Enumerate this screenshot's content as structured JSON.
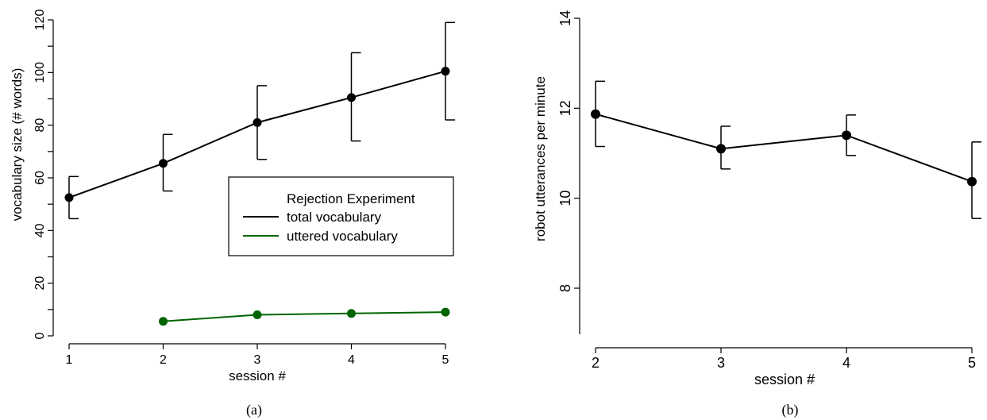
{
  "chart_data": [
    {
      "panel": "(a)",
      "type": "line",
      "xlabel": "session #",
      "ylabel": "vocabulary size (# words)",
      "xticks": [
        1,
        2,
        3,
        4,
        5
      ],
      "yticks": [
        0,
        20,
        40,
        60,
        80,
        100,
        120
      ],
      "xlim": [
        1,
        5
      ],
      "ylim": [
        0,
        120
      ],
      "grid": false,
      "legend": {
        "title": "Rejection Experiment",
        "placement": "center-right"
      },
      "series": [
        {
          "name": "total vocabulary",
          "color": "#000000",
          "x": [
            1,
            2,
            3,
            4,
            5
          ],
          "y": [
            52.5,
            65.5,
            81,
            90.5,
            100.5
          ],
          "err_low": [
            44.5,
            55,
            67,
            74,
            82
          ],
          "err_high": [
            60.5,
            76.5,
            95,
            107.5,
            119
          ]
        },
        {
          "name": "uttered vocabulary",
          "color": "#006400",
          "x": [
            2,
            3,
            4,
            5
          ],
          "y": [
            5.5,
            8,
            8.5,
            9
          ]
        }
      ]
    },
    {
      "panel": "(b)",
      "type": "line",
      "xlabel": "session #",
      "ylabel": "robot utterances per minute",
      "xticks": [
        2,
        3,
        4,
        5
      ],
      "yticks": [
        8,
        10,
        12,
        14
      ],
      "xlim": [
        2,
        5
      ],
      "ylim": [
        7,
        14
      ],
      "grid": false,
      "series": [
        {
          "color": "#000000",
          "x": [
            2,
            3,
            4,
            5
          ],
          "y": [
            11.87,
            11.1,
            11.4,
            10.37
          ],
          "err_low": [
            11.15,
            10.65,
            10.95,
            9.55
          ],
          "err_high": [
            12.6,
            11.6,
            11.85,
            11.25
          ]
        }
      ]
    }
  ]
}
